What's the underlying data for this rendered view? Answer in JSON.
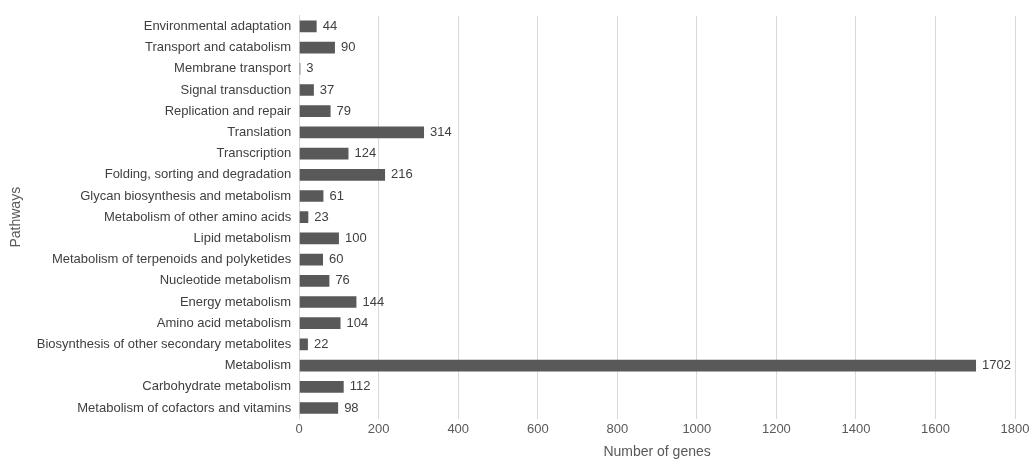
{
  "chart_data": {
    "type": "bar",
    "orientation": "horizontal",
    "xlabel": "Number of genes",
    "ylabel": "Pathways",
    "categories": [
      "Environmental adaptation",
      "Transport and catabolism",
      "Membrane transport",
      "Signal transduction",
      "Replication and repair",
      "Translation",
      "Transcription",
      "Folding, sorting and degradation",
      "Glycan biosynthesis and metabolism",
      "Metabolism of other amino acids",
      "Lipid metabolism",
      "Metabolism of terpenoids and polyketides",
      "Nucleotide metabolism",
      "Energy metabolism",
      "Amino acid metabolism",
      "Biosynthesis of other secondary metabolites",
      "Metabolism",
      "Carbohydrate metabolism",
      "Metabolism of cofactors and vitamins"
    ],
    "values": [
      44,
      90,
      3,
      37,
      79,
      314,
      124,
      216,
      61,
      23,
      100,
      60,
      76,
      144,
      104,
      22,
      1702,
      112,
      98
    ],
    "color": "#595959",
    "xlim": [
      0,
      1800
    ],
    "xticks": [
      0,
      200,
      400,
      600,
      800,
      1000,
      1200,
      1400,
      1600,
      1800
    ],
    "grid": "x",
    "data_labels": true,
    "legend": false
  }
}
